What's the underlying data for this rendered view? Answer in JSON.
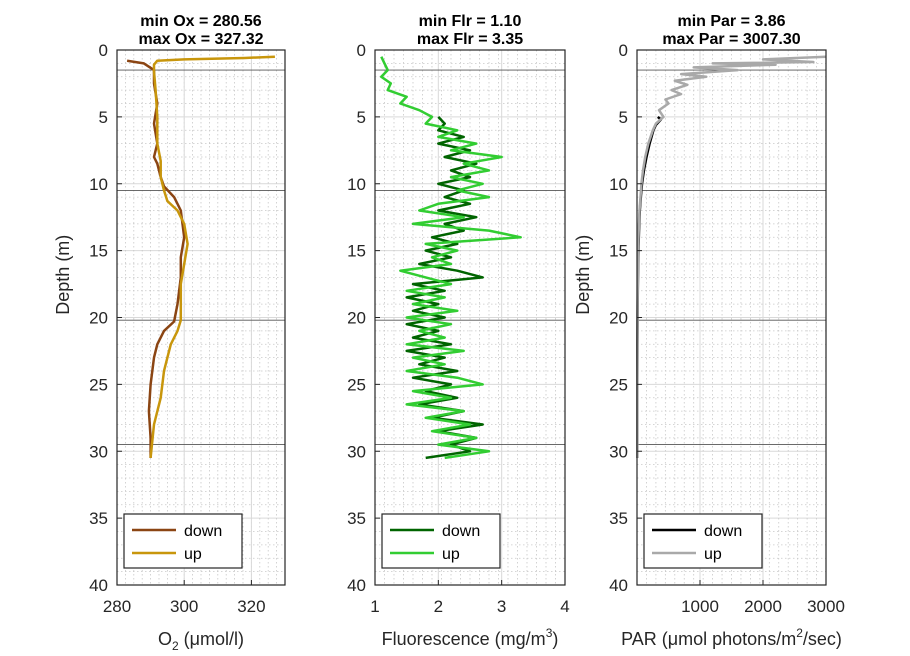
{
  "chart_data": [
    {
      "type": "line",
      "title": [
        "min Ox = 280.56",
        "max Ox = 327.32"
      ],
      "xlabel": "O",
      "xlabel_sub": "2",
      "xlabel_rest": " (μmol/l)",
      "ylabel": "Depth (m)",
      "xlim": [
        280,
        330
      ],
      "ylim": [
        0,
        40
      ],
      "y_reversed": true,
      "xticks": [
        280,
        300,
        320
      ],
      "yticks": [
        0,
        5,
        10,
        15,
        20,
        25,
        30,
        35,
        40
      ],
      "hlines": [
        1.5,
        10.5,
        20.2,
        29.5
      ],
      "legend_position": "bottom-left",
      "legend_entries": [
        "down",
        "up"
      ],
      "series": [
        {
          "name": "down",
          "color": "#8B4513",
          "points": [
            [
              290,
              30.5
            ],
            [
              290,
              29
            ],
            [
              289.5,
              27
            ],
            [
              290,
              25
            ],
            [
              291,
              23
            ],
            [
              292,
              22
            ],
            [
              294,
              21
            ],
            [
              297,
              20.3
            ],
            [
              298,
              19
            ],
            [
              299,
              17
            ],
            [
              299,
              15.5
            ],
            [
              300,
              14
            ],
            [
              299.5,
              13
            ],
            [
              299,
              12
            ],
            [
              297,
              11
            ],
            [
              294,
              10.2
            ],
            [
              293,
              9.5
            ],
            [
              292,
              8.5
            ],
            [
              291,
              8
            ],
            [
              292,
              7
            ],
            [
              291,
              5.5
            ],
            [
              292,
              4
            ],
            [
              291,
              2.5
            ],
            [
              291,
              1.5
            ],
            [
              288,
              1
            ],
            [
              283,
              0.8
            ]
          ]
        },
        {
          "name": "up",
          "color": "#C8960C",
          "points": [
            [
              327,
              0.5
            ],
            [
              318,
              0.6
            ],
            [
              300,
              0.7
            ],
            [
              292,
              0.8
            ],
            [
              291,
              1.1
            ],
            [
              291,
              1.6
            ],
            [
              291.5,
              3
            ],
            [
              292,
              5
            ],
            [
              292,
              7
            ],
            [
              293,
              8.3
            ],
            [
              293,
              9.5
            ],
            [
              294,
              10.5
            ],
            [
              295,
              11.3
            ],
            [
              298,
              12
            ],
            [
              300,
              13
            ],
            [
              301,
              14.5
            ],
            [
              300,
              16
            ],
            [
              299,
              17.5
            ],
            [
              299,
              19
            ],
            [
              299,
              20.2
            ],
            [
              298,
              21
            ],
            [
              296,
              22
            ],
            [
              295,
              23
            ],
            [
              294,
              24
            ],
            [
              293,
              26
            ],
            [
              291,
              28
            ],
            [
              290,
              30.5
            ]
          ]
        }
      ]
    },
    {
      "type": "line",
      "title": [
        "min Flr = 1.10",
        "max Flr = 3.35"
      ],
      "xlabel": "Fluorescence (mg/m",
      "xlabel_sup": "3",
      "xlabel_rest": ")",
      "xlim": [
        1,
        4
      ],
      "ylim": [
        0,
        40
      ],
      "y_reversed": true,
      "xticks": [
        1,
        2,
        3,
        4
      ],
      "yticks": [
        0,
        5,
        10,
        15,
        20,
        25,
        30,
        35,
        40
      ],
      "hlines": [
        1.5,
        10.5,
        20.2,
        29.5
      ],
      "legend_position": "bottom-left",
      "legend_entries": [
        "down",
        "up"
      ],
      "series": [
        {
          "name": "down",
          "color": "#006400",
          "points": [
            [
              2.0,
              5
            ],
            [
              2.1,
              5.5
            ],
            [
              2.0,
              6
            ],
            [
              2.4,
              6.5
            ],
            [
              2.0,
              7
            ],
            [
              2.5,
              7.5
            ],
            [
              2.1,
              8
            ],
            [
              2.6,
              8.5
            ],
            [
              2.2,
              9
            ],
            [
              2.5,
              9.5
            ],
            [
              2.0,
              10
            ],
            [
              2.4,
              10.5
            ],
            [
              2.1,
              11
            ],
            [
              2.5,
              11.5
            ],
            [
              2.0,
              12
            ],
            [
              2.6,
              12.5
            ],
            [
              2.1,
              13
            ],
            [
              2.4,
              13.5
            ],
            [
              1.9,
              14
            ],
            [
              2.3,
              14.5
            ],
            [
              1.8,
              15
            ],
            [
              2.2,
              15.5
            ],
            [
              1.7,
              16
            ],
            [
              2.3,
              16.5
            ],
            [
              2.7,
              17
            ],
            [
              1.6,
              17.5
            ],
            [
              2.1,
              18
            ],
            [
              1.5,
              18.5
            ],
            [
              2.0,
              19
            ],
            [
              1.6,
              19.5
            ],
            [
              2.1,
              20
            ],
            [
              1.5,
              20.5
            ],
            [
              2.0,
              21
            ],
            [
              1.6,
              21.5
            ],
            [
              2.2,
              22
            ],
            [
              1.5,
              22.5
            ],
            [
              2.1,
              23
            ],
            [
              1.7,
              23.5
            ],
            [
              2.3,
              24
            ],
            [
              1.6,
              24.5
            ],
            [
              2.2,
              25
            ],
            [
              1.8,
              25.5
            ],
            [
              2.3,
              26
            ],
            [
              1.7,
              26.5
            ],
            [
              2.4,
              27
            ],
            [
              1.9,
              27.5
            ],
            [
              2.7,
              28
            ],
            [
              2.0,
              28.5
            ],
            [
              2.6,
              29
            ],
            [
              2.2,
              29.5
            ],
            [
              2.5,
              30
            ],
            [
              1.8,
              30.5
            ]
          ]
        },
        {
          "name": "up",
          "color": "#32CD32",
          "points": [
            [
              1.1,
              0.5
            ],
            [
              1.15,
              1
            ],
            [
              1.2,
              1.5
            ],
            [
              1.1,
              2
            ],
            [
              1.25,
              2.5
            ],
            [
              1.2,
              3
            ],
            [
              1.5,
              3.5
            ],
            [
              1.4,
              4
            ],
            [
              1.7,
              4.5
            ],
            [
              1.9,
              5
            ],
            [
              1.8,
              5.5
            ],
            [
              2.3,
              6
            ],
            [
              2.0,
              6.5
            ],
            [
              2.6,
              7
            ],
            [
              2.2,
              7.5
            ],
            [
              3.0,
              8
            ],
            [
              2.4,
              8.5
            ],
            [
              2.8,
              9
            ],
            [
              2.2,
              9.5
            ],
            [
              2.7,
              10
            ],
            [
              2.3,
              10.5
            ],
            [
              2.8,
              11
            ],
            [
              2.0,
              11.5
            ],
            [
              1.7,
              12
            ],
            [
              2.4,
              12.5
            ],
            [
              1.6,
              13
            ],
            [
              2.8,
              13.5
            ],
            [
              3.3,
              14
            ],
            [
              1.8,
              14.5
            ],
            [
              2.3,
              15
            ],
            [
              1.9,
              15.5
            ],
            [
              2.2,
              16
            ],
            [
              1.4,
              16.5
            ],
            [
              1.8,
              17
            ],
            [
              2.2,
              17.5
            ],
            [
              1.5,
              18
            ],
            [
              2.1,
              18.5
            ],
            [
              1.6,
              19
            ],
            [
              2.3,
              19.5
            ],
            [
              1.5,
              20
            ],
            [
              2.2,
              20.5
            ],
            [
              1.7,
              21
            ],
            [
              2.1,
              21.5
            ],
            [
              1.5,
              22
            ],
            [
              2.4,
              22.5
            ],
            [
              1.6,
              23
            ],
            [
              2.1,
              23.5
            ],
            [
              1.5,
              24
            ],
            [
              2.3,
              24.5
            ],
            [
              2.7,
              25
            ],
            [
              1.6,
              25.5
            ],
            [
              2.2,
              26
            ],
            [
              1.5,
              26.5
            ],
            [
              2.4,
              27
            ],
            [
              1.8,
              27.5
            ],
            [
              2.5,
              28
            ],
            [
              1.9,
              28.5
            ],
            [
              2.6,
              29
            ],
            [
              2.0,
              29.5
            ],
            [
              2.8,
              30
            ],
            [
              2.1,
              30.5
            ]
          ]
        }
      ]
    },
    {
      "type": "line",
      "title": [
        "min Par = 3.86",
        "max Par = 3007.30"
      ],
      "xlabel": "PAR (μmol photons/m",
      "xlabel_sup": "2",
      "xlabel_rest": "/sec)",
      "ylabel": "Depth (m)",
      "xlim": [
        0,
        3000
      ],
      "ylim": [
        0,
        40
      ],
      "y_reversed": true,
      "xticks": [
        1000,
        2000,
        3000
      ],
      "yticks": [
        0,
        5,
        10,
        15,
        20,
        25,
        30,
        35,
        40
      ],
      "hlines": [
        1.5,
        10.5,
        20.2,
        29.5
      ],
      "legend_position": "bottom-left",
      "legend_entries": [
        "down",
        "up"
      ],
      "series": [
        {
          "name": "down",
          "color": "#000000",
          "points": [
            [
              330,
              5
            ],
            [
              380,
              5.2
            ],
            [
              300,
              5.6
            ],
            [
              260,
              6
            ],
            [
              200,
              7
            ],
            [
              150,
              8
            ],
            [
              110,
              9
            ],
            [
              80,
              10
            ],
            [
              60,
              11
            ],
            [
              45,
              12
            ],
            [
              35,
              13
            ],
            [
              28,
              14
            ],
            [
              22,
              15
            ],
            [
              17,
              16
            ],
            [
              12,
              18
            ],
            [
              9,
              20
            ],
            [
              7,
              22
            ],
            [
              5,
              25
            ],
            [
              4,
              28
            ],
            [
              4,
              30.5
            ]
          ]
        },
        {
          "name": "up",
          "color": "#A9A9A9",
          "points": [
            [
              3000,
              0.5
            ],
            [
              2000,
              0.7
            ],
            [
              2800,
              0.9
            ],
            [
              1200,
              1.0
            ],
            [
              2200,
              1.1
            ],
            [
              900,
              1.3
            ],
            [
              1600,
              1.5
            ],
            [
              700,
              1.8
            ],
            [
              1100,
              2.0
            ],
            [
              600,
              2.3
            ],
            [
              800,
              2.6
            ],
            [
              550,
              3.0
            ],
            [
              700,
              3.3
            ],
            [
              450,
              3.7
            ],
            [
              500,
              4.0
            ],
            [
              350,
              4.5
            ],
            [
              420,
              5.0
            ],
            [
              300,
              5.5
            ],
            [
              250,
              6.0
            ],
            [
              180,
              7.0
            ],
            [
              130,
              8.0
            ],
            [
              95,
              9.0
            ],
            [
              70,
              10.0
            ],
            [
              55,
              11.0
            ],
            [
              40,
              12.0
            ],
            [
              30,
              13.0
            ],
            [
              24,
              14.0
            ],
            [
              18,
              15.0
            ],
            [
              13,
              17.0
            ],
            [
              10,
              19.0
            ],
            [
              8,
              21.0
            ],
            [
              6,
              23.0
            ],
            [
              5,
              25.0
            ],
            [
              4,
              28.0
            ],
            [
              4,
              30.5
            ]
          ]
        }
      ]
    }
  ]
}
